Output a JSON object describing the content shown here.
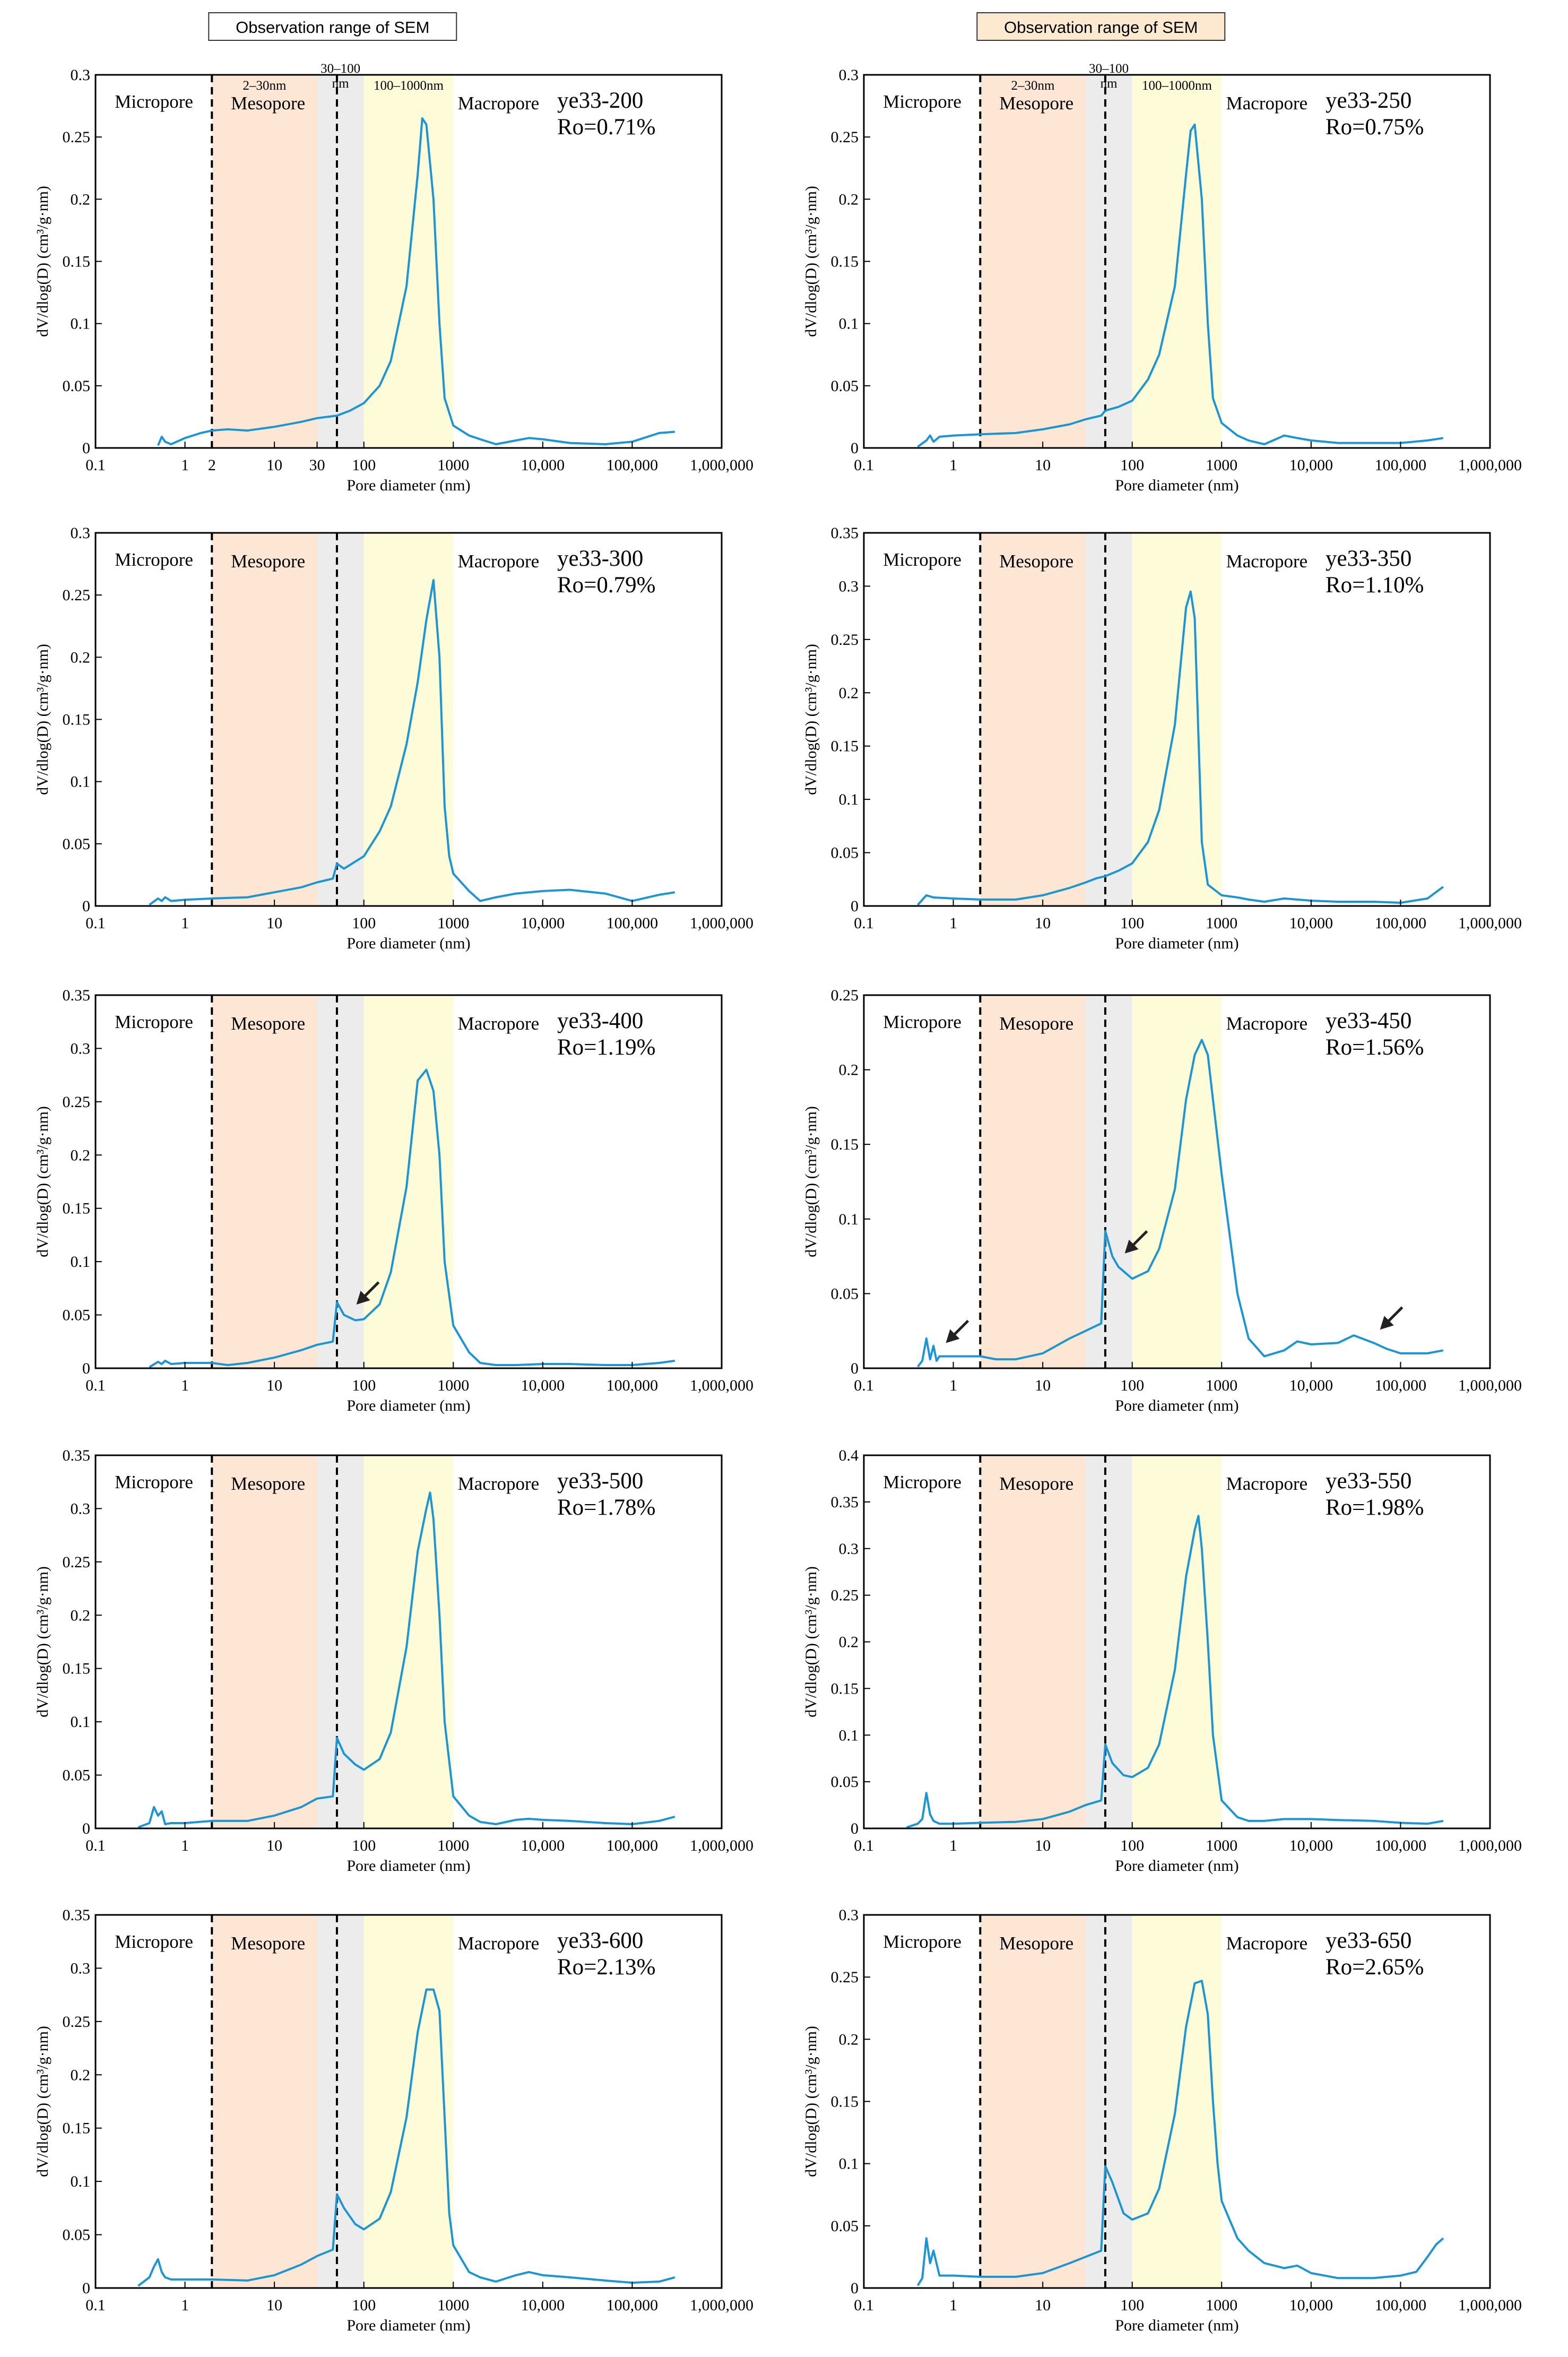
{
  "figure": {
    "sem_header_label": "Observation range of SEM",
    "sem_header_fill_left": "#ffffff",
    "sem_header_fill_right": "#fde9cf"
  },
  "colors": {
    "curve": "#1b95d3",
    "mesopore_band": "#fde7d4",
    "transition_band": "#ececec",
    "macropore_band": "#fefbd9",
    "arrow": "#222222"
  },
  "shared": {
    "xlabel": "Pore diameter (nm)",
    "ylabel": "dV/dlog(D) (cm³/g·nm)",
    "region_labels": [
      "Micropore",
      "Mesopore",
      "Macropore"
    ],
    "range_labels": [
      "2–30nm",
      "30–100 nm",
      "100–1000nm"
    ],
    "x_tick_labels_first": [
      "0.1",
      "1",
      "2",
      "10",
      "30",
      "100",
      "1000",
      "10,000",
      "100,000",
      "1,000,000"
    ],
    "x_tick_labels": [
      "0.1",
      "1",
      "10",
      "100",
      "1000",
      "10,000",
      "100,000",
      "1,000,000"
    ],
    "bands_nm": {
      "mesopore": [
        2,
        30
      ],
      "transition": [
        30,
        100
      ],
      "macropore": [
        100,
        1000
      ]
    },
    "boundary_lines_nm": [
      2,
      50
    ],
    "xlim_nm": [
      0.1,
      1000000
    ]
  },
  "chart_data": [
    {
      "type": "line",
      "title": "ye33-200",
      "ro": "Ro=0.71%",
      "ylim": [
        0,
        0.3
      ],
      "y_ticks": [
        "0",
        "0.05",
        "0.1",
        "0.15",
        "0.2",
        "0.25",
        "0.3"
      ],
      "x": [
        0.5,
        0.55,
        0.6,
        0.7,
        1,
        1.5,
        2,
        3,
        5,
        10,
        20,
        30,
        50,
        70,
        100,
        150,
        200,
        300,
        400,
        450,
        500,
        600,
        700,
        800,
        1000,
        1500,
        2000,
        3000,
        5000,
        7000,
        10000,
        20000,
        50000,
        100000,
        200000,
        300000
      ],
      "values": [
        0.002,
        0.009,
        0.005,
        0.003,
        0.008,
        0.012,
        0.014,
        0.015,
        0.014,
        0.017,
        0.021,
        0.024,
        0.026,
        0.03,
        0.036,
        0.05,
        0.07,
        0.13,
        0.22,
        0.265,
        0.26,
        0.2,
        0.1,
        0.04,
        0.018,
        0.01,
        0.007,
        0.003,
        0.006,
        0.008,
        0.007,
        0.004,
        0.003,
        0.005,
        0.012,
        0.013
      ],
      "arrows_nm": []
    },
    {
      "type": "line",
      "title": "ye33-250",
      "ro": "Ro=0.75%",
      "ylim": [
        0,
        0.3
      ],
      "y_ticks": [
        "0",
        "0.05",
        "0.1",
        "0.15",
        "0.2",
        "0.25",
        "0.3"
      ],
      "x": [
        0.4,
        0.5,
        0.55,
        0.6,
        0.7,
        1,
        2,
        5,
        10,
        20,
        30,
        45,
        50,
        70,
        100,
        150,
        200,
        300,
        400,
        450,
        500,
        600,
        700,
        800,
        1000,
        1500,
        2000,
        3000,
        5000,
        7000,
        10000,
        20000,
        50000,
        100000,
        200000,
        300000
      ],
      "values": [
        0.001,
        0.006,
        0.01,
        0.005,
        0.009,
        0.01,
        0.011,
        0.012,
        0.015,
        0.019,
        0.023,
        0.026,
        0.03,
        0.033,
        0.038,
        0.055,
        0.075,
        0.13,
        0.22,
        0.255,
        0.26,
        0.2,
        0.1,
        0.04,
        0.02,
        0.01,
        0.006,
        0.003,
        0.01,
        0.008,
        0.006,
        0.004,
        0.004,
        0.004,
        0.006,
        0.008
      ],
      "arrows_nm": []
    },
    {
      "type": "line",
      "title": "ye33-300",
      "ro": "Ro=0.79%",
      "ylim": [
        0,
        0.3
      ],
      "y_ticks": [
        "0",
        "0.05",
        "0.1",
        "0.15",
        "0.2",
        "0.25",
        "0.3"
      ],
      "x": [
        0.4,
        0.5,
        0.55,
        0.6,
        0.7,
        1,
        2,
        5,
        10,
        20,
        30,
        45,
        50,
        60,
        100,
        150,
        200,
        300,
        400,
        500,
        600,
        700,
        800,
        900,
        1000,
        1500,
        2000,
        3000,
        5000,
        10000,
        20000,
        50000,
        100000,
        200000,
        300000
      ],
      "values": [
        0.001,
        0.006,
        0.004,
        0.007,
        0.004,
        0.005,
        0.006,
        0.007,
        0.011,
        0.015,
        0.019,
        0.022,
        0.034,
        0.03,
        0.04,
        0.06,
        0.08,
        0.13,
        0.18,
        0.23,
        0.262,
        0.2,
        0.08,
        0.04,
        0.026,
        0.012,
        0.004,
        0.007,
        0.01,
        0.012,
        0.013,
        0.01,
        0.004,
        0.009,
        0.011
      ],
      "arrows_nm": []
    },
    {
      "type": "line",
      "title": "ye33-350",
      "ro": "Ro=1.10%",
      "ylim": [
        0,
        0.35
      ],
      "y_ticks": [
        "0",
        "0.05",
        "0.1",
        "0.15",
        "0.2",
        "0.25",
        "0.3",
        "0.35"
      ],
      "x": [
        0.4,
        0.5,
        0.6,
        1,
        2,
        5,
        10,
        20,
        30,
        40,
        50,
        70,
        100,
        150,
        200,
        300,
        400,
        450,
        500,
        550,
        600,
        700,
        1000,
        1500,
        2000,
        3000,
        5000,
        10000,
        20000,
        50000,
        100000,
        200000,
        300000
      ],
      "values": [
        0.001,
        0.01,
        0.008,
        0.007,
        0.006,
        0.006,
        0.01,
        0.017,
        0.022,
        0.026,
        0.028,
        0.033,
        0.04,
        0.06,
        0.09,
        0.17,
        0.28,
        0.295,
        0.27,
        0.16,
        0.06,
        0.02,
        0.01,
        0.008,
        0.006,
        0.004,
        0.007,
        0.005,
        0.004,
        0.004,
        0.003,
        0.007,
        0.018
      ],
      "arrows_nm": []
    },
    {
      "type": "line",
      "title": "ye33-400",
      "ro": "Ro=1.19%",
      "ylim": [
        0,
        0.35
      ],
      "y_ticks": [
        "0",
        "0.05",
        "0.1",
        "0.15",
        "0.2",
        "0.25",
        "0.3",
        "0.35"
      ],
      "x": [
        0.4,
        0.5,
        0.55,
        0.6,
        0.7,
        1,
        2,
        3,
        5,
        10,
        20,
        30,
        45,
        50,
        60,
        80,
        100,
        150,
        200,
        300,
        400,
        500,
        600,
        700,
        800,
        1000,
        1500,
        2000,
        3000,
        5000,
        10000,
        20000,
        50000,
        100000,
        200000,
        300000
      ],
      "values": [
        0.001,
        0.006,
        0.004,
        0.007,
        0.004,
        0.005,
        0.005,
        0.003,
        0.005,
        0.01,
        0.017,
        0.022,
        0.025,
        0.062,
        0.05,
        0.045,
        0.046,
        0.06,
        0.09,
        0.17,
        0.27,
        0.28,
        0.26,
        0.2,
        0.1,
        0.04,
        0.015,
        0.005,
        0.003,
        0.003,
        0.004,
        0.004,
        0.003,
        0.003,
        0.005,
        0.007
      ],
      "arrows_nm": [
        70
      ]
    },
    {
      "type": "line",
      "title": "ye33-450",
      "ro": "Ro=1.56%",
      "ylim": [
        0,
        0.25
      ],
      "y_ticks": [
        "0",
        "0.05",
        "0.1",
        "0.15",
        "0.2",
        "0.25"
      ],
      "x": [
        0.4,
        0.45,
        0.5,
        0.55,
        0.6,
        0.65,
        0.7,
        1,
        2,
        3,
        5,
        10,
        20,
        30,
        45,
        50,
        60,
        70,
        100,
        150,
        200,
        300,
        400,
        500,
        600,
        700,
        800,
        1000,
        1500,
        2000,
        3000,
        5000,
        7000,
        10000,
        20000,
        30000,
        50000,
        70000,
        100000,
        200000,
        300000
      ],
      "values": [
        0.001,
        0.005,
        0.02,
        0.006,
        0.015,
        0.005,
        0.008,
        0.008,
        0.008,
        0.006,
        0.006,
        0.01,
        0.02,
        0.025,
        0.03,
        0.092,
        0.075,
        0.068,
        0.06,
        0.065,
        0.08,
        0.12,
        0.18,
        0.21,
        0.22,
        0.21,
        0.18,
        0.13,
        0.05,
        0.02,
        0.008,
        0.012,
        0.018,
        0.016,
        0.017,
        0.022,
        0.017,
        0.013,
        0.01,
        0.01,
        0.012
      ],
      "arrows_nm": [
        0.7,
        70,
        50000
      ]
    },
    {
      "type": "line",
      "title": "ye33-500",
      "ro": "Ro=1.78%",
      "ylim": [
        0,
        0.35
      ],
      "y_ticks": [
        "0",
        "0.05",
        "0.1",
        "0.15",
        "0.2",
        "0.25",
        "0.3",
        "0.35"
      ],
      "x": [
        0.3,
        0.4,
        0.45,
        0.5,
        0.55,
        0.6,
        0.7,
        1,
        2,
        5,
        10,
        20,
        30,
        45,
        50,
        60,
        80,
        100,
        150,
        200,
        300,
        400,
        500,
        550,
        600,
        700,
        800,
        1000,
        1500,
        2000,
        3000,
        5000,
        7000,
        10000,
        20000,
        50000,
        100000,
        200000,
        300000
      ],
      "values": [
        0.001,
        0.005,
        0.02,
        0.012,
        0.016,
        0.004,
        0.005,
        0.005,
        0.007,
        0.007,
        0.012,
        0.02,
        0.028,
        0.03,
        0.085,
        0.07,
        0.06,
        0.055,
        0.065,
        0.09,
        0.17,
        0.26,
        0.3,
        0.315,
        0.29,
        0.2,
        0.1,
        0.03,
        0.012,
        0.006,
        0.004,
        0.008,
        0.009,
        0.008,
        0.007,
        0.005,
        0.004,
        0.007,
        0.011
      ],
      "arrows_nm": []
    },
    {
      "type": "line",
      "title": "ye33-550",
      "ro": "Ro=1.98%",
      "ylim": [
        0,
        0.4
      ],
      "y_ticks": [
        "0",
        "0.05",
        "0.1",
        "0.15",
        "0.2",
        "0.25",
        "0.3",
        "0.35",
        "0.4"
      ],
      "x": [
        0.3,
        0.4,
        0.45,
        0.5,
        0.55,
        0.6,
        0.7,
        1,
        2,
        5,
        10,
        20,
        30,
        45,
        50,
        60,
        80,
        100,
        150,
        200,
        300,
        400,
        500,
        550,
        600,
        700,
        800,
        1000,
        1500,
        2000,
        3000,
        5000,
        10000,
        20000,
        50000,
        100000,
        200000,
        300000
      ],
      "values": [
        0.001,
        0.005,
        0.01,
        0.038,
        0.015,
        0.008,
        0.005,
        0.005,
        0.006,
        0.007,
        0.01,
        0.018,
        0.025,
        0.03,
        0.09,
        0.07,
        0.057,
        0.055,
        0.065,
        0.09,
        0.17,
        0.27,
        0.32,
        0.335,
        0.3,
        0.2,
        0.1,
        0.03,
        0.012,
        0.008,
        0.008,
        0.01,
        0.01,
        0.009,
        0.008,
        0.006,
        0.005,
        0.008
      ],
      "arrows_nm": []
    },
    {
      "type": "line",
      "title": "ye33-600",
      "ro": "Ro=2.13%",
      "ylim": [
        0,
        0.35
      ],
      "y_ticks": [
        "0",
        "0.05",
        "0.1",
        "0.15",
        "0.2",
        "0.25",
        "0.3",
        "0.35"
      ],
      "x": [
        0.3,
        0.4,
        0.45,
        0.5,
        0.55,
        0.6,
        0.7,
        1,
        2,
        5,
        10,
        20,
        30,
        45,
        50,
        60,
        80,
        100,
        150,
        200,
        300,
        400,
        500,
        600,
        700,
        800,
        900,
        1000,
        1500,
        2000,
        3000,
        5000,
        7000,
        10000,
        20000,
        50000,
        100000,
        200000,
        300000
      ],
      "values": [
        0.002,
        0.01,
        0.02,
        0.027,
        0.015,
        0.01,
        0.008,
        0.008,
        0.008,
        0.007,
        0.012,
        0.022,
        0.03,
        0.036,
        0.088,
        0.075,
        0.06,
        0.055,
        0.065,
        0.09,
        0.16,
        0.24,
        0.28,
        0.28,
        0.26,
        0.16,
        0.07,
        0.04,
        0.015,
        0.01,
        0.006,
        0.012,
        0.015,
        0.012,
        0.01,
        0.007,
        0.005,
        0.006,
        0.01
      ],
      "arrows_nm": []
    },
    {
      "type": "line",
      "title": "ye33-650",
      "ro": "Ro=2.65%",
      "ylim": [
        0,
        0.3
      ],
      "y_ticks": [
        "0",
        "0.05",
        "0.1",
        "0.15",
        "0.2",
        "0.25",
        "0.3"
      ],
      "x": [
        0.4,
        0.45,
        0.5,
        0.55,
        0.6,
        0.7,
        1,
        2,
        5,
        10,
        20,
        30,
        45,
        50,
        60,
        80,
        100,
        150,
        200,
        300,
        400,
        500,
        600,
        700,
        800,
        900,
        1000,
        1500,
        2000,
        3000,
        5000,
        7000,
        10000,
        20000,
        50000,
        100000,
        150000,
        200000,
        250000,
        300000
      ],
      "values": [
        0.002,
        0.008,
        0.04,
        0.02,
        0.03,
        0.01,
        0.01,
        0.009,
        0.009,
        0.012,
        0.02,
        0.025,
        0.03,
        0.098,
        0.085,
        0.06,
        0.055,
        0.06,
        0.08,
        0.14,
        0.21,
        0.245,
        0.247,
        0.22,
        0.15,
        0.1,
        0.07,
        0.04,
        0.03,
        0.02,
        0.016,
        0.018,
        0.012,
        0.008,
        0.008,
        0.01,
        0.013,
        0.025,
        0.035,
        0.04
      ],
      "arrows_nm": []
    }
  ]
}
